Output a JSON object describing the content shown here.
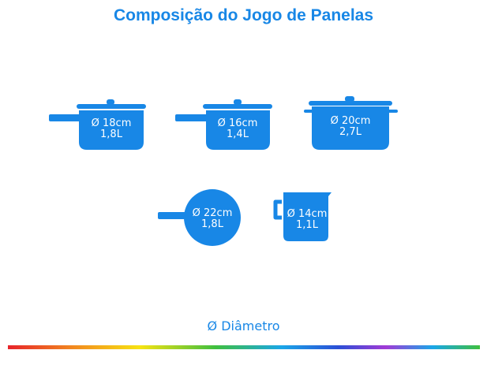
{
  "title": "Composição do Jogo de Panelas",
  "brand_color": "#1887e6",
  "items": [
    {
      "name": "panela-18",
      "diameter": "Ø 18cm",
      "capacity": "1,8L"
    },
    {
      "name": "panela-16",
      "diameter": "Ø 16cm",
      "capacity": "1,4L"
    },
    {
      "name": "cacarola-20",
      "diameter": "Ø 20cm",
      "capacity": "2,7L"
    },
    {
      "name": "frigideira-22",
      "diameter": "Ø 22cm",
      "capacity": "1,8L"
    },
    {
      "name": "leiteira-14",
      "diameter": "Ø 14cm",
      "capacity": "1,1L"
    }
  ],
  "legend": "Ø Diâmetro"
}
